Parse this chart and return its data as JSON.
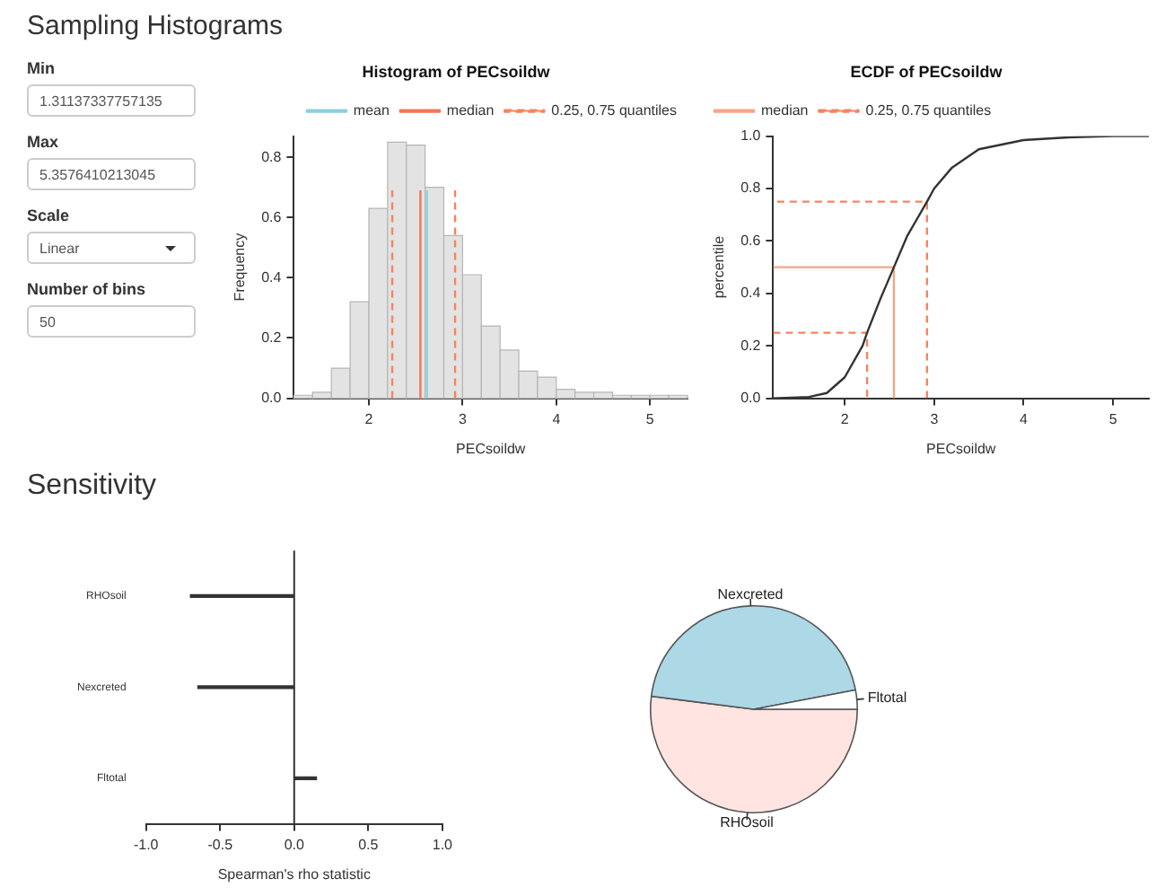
{
  "chart_data": [
    {
      "type": "other",
      "title": "Sampling Histograms",
      "annotations": [
        "Min",
        "1.31137337757135",
        "Max",
        "5.3576410213045",
        "Scale",
        "Linear",
        "Number of bins",
        "50"
      ]
    },
    {
      "type": "histogram",
      "title": "Histogram of PECsoildw",
      "xlabel": "PECsoildw",
      "ylabel": "Frequency",
      "bins": [
        1.2,
        1.4,
        1.6,
        1.8,
        2.0,
        2.2,
        2.4,
        2.6,
        2.8,
        3.0,
        3.2,
        3.4,
        3.6,
        3.8,
        4.0,
        4.2,
        4.4,
        4.6,
        4.8,
        5.0,
        5.2,
        5.4
      ],
      "values": [
        0.01,
        0.02,
        0.1,
        0.32,
        0.63,
        0.85,
        0.84,
        0.7,
        0.54,
        0.41,
        0.24,
        0.16,
        0.09,
        0.07,
        0.03,
        0.02,
        0.02,
        0.01,
        0.01,
        0.01,
        0.01
      ],
      "color": "#e3e3e3",
      "series": [
        {
          "type": "line",
          "name": "mean",
          "color": "#8ecfe0",
          "line_style": "solid",
          "x": [
            2.62,
            2.62
          ],
          "values": [
            0,
            0.69
          ]
        },
        {
          "type": "line",
          "name": "median",
          "color": "#f07858",
          "line_style": "solid",
          "x": [
            2.55,
            2.55
          ],
          "values": [
            0,
            0.69
          ]
        },
        {
          "type": "line",
          "name": "0.25, 0.75 quantiles",
          "color": "#f4845f",
          "line_style": "dashed",
          "x": [
            2.25,
            2.25,
            2.6,
            2.92,
            2.92
          ],
          "values": [
            0,
            0.69,
            null,
            0,
            0.69
          ]
        }
      ],
      "xlim": [
        1.2,
        5.4
      ],
      "xticks": [
        2,
        3,
        4,
        5
      ],
      "ylim": [
        0,
        0.87
      ],
      "yticks": [
        {
          "value": 0,
          "label": "0.0"
        },
        {
          "value": 0.2,
          "label": "0.2"
        },
        {
          "value": 0.4,
          "label": "0.4"
        },
        {
          "value": 0.6,
          "label": "0.6"
        },
        {
          "value": 0.8,
          "label": "0.8"
        }
      ],
      "legend": "top right",
      "marker": "none"
    },
    {
      "type": "line",
      "title": "ECDF of PECsoildw",
      "xlabel": "PECsoildw",
      "ylabel": "percentile",
      "series": [
        {
          "type": "line",
          "color": "#333333",
          "line_style": "solid",
          "x": [
            1.2,
            1.6,
            1.8,
            2.0,
            2.2,
            2.25,
            2.4,
            2.55,
            2.7,
            2.92,
            3.0,
            3.2,
            3.5,
            4.0,
            4.5,
            5.0,
            5.4
          ],
          "values": [
            0,
            0.005,
            0.02,
            0.08,
            0.2,
            0.25,
            0.38,
            0.5,
            0.62,
            0.75,
            0.8,
            0.88,
            0.95,
            0.985,
            0.995,
            1.0,
            1.0
          ]
        },
        {
          "type": "line",
          "name": "median",
          "color": "#f4a58a",
          "line_style": "solid",
          "x": [
            1.2,
            2.55,
            2.55
          ],
          "values": [
            0.5,
            0.5,
            0
          ]
        },
        {
          "type": "line",
          "name": "0.25, 0.75 quantiles",
          "color": "#f4845f",
          "line_style": "dashed",
          "x": [
            1.2,
            2.25,
            2.25,
            2.6,
            2.92,
            2.92,
            1.2
          ],
          "values": [
            0.25,
            0.25,
            0,
            null,
            0,
            0.75,
            0.75
          ]
        }
      ],
      "xlim": [
        1.2,
        5.4
      ],
      "xticks": [
        2,
        3,
        4,
        5
      ],
      "ylim": [
        0,
        1
      ],
      "yticks": [
        {
          "value": 0,
          "label": "0.0"
        },
        {
          "value": 0.2,
          "label": "0.2"
        },
        {
          "value": 0.4,
          "label": "0.4"
        },
        {
          "value": 0.6,
          "label": "0.6"
        },
        {
          "value": 0.8,
          "label": "0.8"
        },
        {
          "value": 1,
          "label": "1.0"
        }
      ],
      "legend": "top left",
      "marker": "none"
    },
    {
      "type": "bar",
      "title": "Sensitivity",
      "orientation": "horizontal",
      "xlabel": "Spearman's rho statistic",
      "categories": [
        "RHOsoil",
        "Nexcreted",
        "Fltotal"
      ],
      "values": [
        -0.7,
        -0.65,
        0.15
      ],
      "color": "#333333",
      "xlim": [
        -1,
        1
      ],
      "xticks": [
        {
          "value": -1,
          "label": "-1.0"
        },
        {
          "value": -0.5,
          "label": "-0.5"
        },
        {
          "value": 0,
          "label": "0.0"
        },
        {
          "value": 0.5,
          "label": "0.5"
        },
        {
          "value": 1,
          "label": "1.0"
        }
      ],
      "ref_lines": [
        {
          "axis": "x",
          "value": 0,
          "color": "#333333"
        }
      ]
    },
    {
      "type": "pie",
      "categories": [
        "RHOsoil",
        "Nexcreted",
        "Fltotal"
      ],
      "values": [
        52,
        45,
        3
      ],
      "colors": [
        "#ffe4e1",
        "#add8e6",
        "#ffffff"
      ]
    }
  ]
}
